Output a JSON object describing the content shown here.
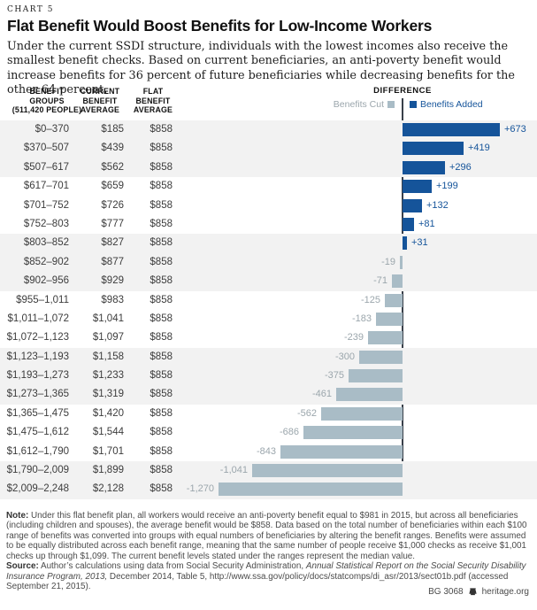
{
  "chart_label": "CHART 5",
  "title": "Flat Benefit Would Boost Benefits for Low-Income Workers",
  "subtitle": "Under the current SSDI structure, individuals with the lowest incomes also receive the smallest benefit checks. Based on current beneficiaries, an anti-poverty benefit would increase benefits for 36 percent of future beneficiaries while decreasing benefits for the other 64 percent.",
  "table": {
    "headers": {
      "group_lines": [
        "BENEFIT",
        "GROUPS",
        "(511,420 PEOPLE)"
      ],
      "current_lines": [
        "CURRENT",
        "BENEFIT",
        "AVERAGE"
      ],
      "flat_lines": [
        "FLAT",
        "BENEFIT",
        "AVERAGE"
      ],
      "difference": "DIFFERENCE"
    }
  },
  "legend": {
    "cut_label": "Benefits Cut",
    "added_label": "Benefits Added"
  },
  "colors": {
    "benefits_added": "#15549A",
    "benefits_cut": "#A9BCC6",
    "row_shade": "#F2F2F2",
    "axis": "#39404A",
    "neg_label": "#9BA6AC"
  },
  "rows": [
    {
      "group": "$0–370",
      "current": "$185",
      "flat": "$858",
      "diff": 673,
      "diff_label": "+673"
    },
    {
      "group": "$370–507",
      "current": "$439",
      "flat": "$858",
      "diff": 419,
      "diff_label": "+419"
    },
    {
      "group": "$507–617",
      "current": "$562",
      "flat": "$858",
      "diff": 296,
      "diff_label": "+296"
    },
    {
      "group": "$617–701",
      "current": "$659",
      "flat": "$858",
      "diff": 199,
      "diff_label": "+199"
    },
    {
      "group": "$701–752",
      "current": "$726",
      "flat": "$858",
      "diff": 132,
      "diff_label": "+132"
    },
    {
      "group": "$752–803",
      "current": "$777",
      "flat": "$858",
      "diff": 81,
      "diff_label": "+81"
    },
    {
      "group": "$803–852",
      "current": "$827",
      "flat": "$858",
      "diff": 31,
      "diff_label": "+31"
    },
    {
      "group": "$852–902",
      "current": "$877",
      "flat": "$858",
      "diff": -19,
      "diff_label": "-19"
    },
    {
      "group": "$902–956",
      "current": "$929",
      "flat": "$858",
      "diff": -71,
      "diff_label": "-71"
    },
    {
      "group": "$955–1,011",
      "current": "$983",
      "flat": "$858",
      "diff": -125,
      "diff_label": "-125"
    },
    {
      "group": "$1,011–1,072",
      "current": "$1,041",
      "flat": "$858",
      "diff": -183,
      "diff_label": "-183"
    },
    {
      "group": "$1,072–1,123",
      "current": "$1,097",
      "flat": "$858",
      "diff": -239,
      "diff_label": "-239"
    },
    {
      "group": "$1,123–1,193",
      "current": "$1,158",
      "flat": "$858",
      "diff": -300,
      "diff_label": "-300"
    },
    {
      "group": "$1,193–1,273",
      "current": "$1,233",
      "flat": "$858",
      "diff": -375,
      "diff_label": "-375"
    },
    {
      "group": "$1,273–1,365",
      "current": "$1,319",
      "flat": "$858",
      "diff": -461,
      "diff_label": "-461"
    },
    {
      "group": "$1,365–1,475",
      "current": "$1,420",
      "flat": "$858",
      "diff": -562,
      "diff_label": "-562"
    },
    {
      "group": "$1,475–1,612",
      "current": "$1,544",
      "flat": "$858",
      "diff": -686,
      "diff_label": "-686"
    },
    {
      "group": "$1,612–1,790",
      "current": "$1,701",
      "flat": "$858",
      "diff": -843,
      "diff_label": "-843"
    },
    {
      "group": "$1,790–2,009",
      "current": "$1,899",
      "flat": "$858",
      "diff": -1041,
      "diff_label": "-1,041"
    },
    {
      "group": "$2,009–2,248",
      "current": "$2,128",
      "flat": "$858",
      "diff": -1270,
      "diff_label": "-1,270"
    }
  ],
  "chart_data": {
    "type": "bar",
    "orientation": "horizontal-diverging",
    "title": "Flat Benefit Would Boost Benefits for Low-Income Workers",
    "categories": [
      "$0–370",
      "$370–507",
      "$507–617",
      "$617–701",
      "$701–752",
      "$752–803",
      "$803–852",
      "$852–902",
      "$902–956",
      "$955–1,011",
      "$1,011–1,072",
      "$1,072–1,123",
      "$1,123–1,193",
      "$1,193–1,273",
      "$1,273–1,365",
      "$1,365–1,475",
      "$1,475–1,612",
      "$1,612–1,790",
      "$1,790–2,009",
      "$2,009–2,248"
    ],
    "series": [
      {
        "name": "Current Benefit Average",
        "values": [
          185,
          439,
          562,
          659,
          726,
          777,
          827,
          877,
          929,
          983,
          1041,
          1097,
          1158,
          1233,
          1319,
          1420,
          1544,
          1701,
          1899,
          2128
        ]
      },
      {
        "name": "Flat Benefit Average",
        "values": [
          858,
          858,
          858,
          858,
          858,
          858,
          858,
          858,
          858,
          858,
          858,
          858,
          858,
          858,
          858,
          858,
          858,
          858,
          858,
          858
        ]
      },
      {
        "name": "Difference",
        "values": [
          673,
          419,
          296,
          199,
          132,
          81,
          31,
          -19,
          -71,
          -125,
          -183,
          -239,
          -300,
          -375,
          -461,
          -562,
          -686,
          -843,
          -1041,
          -1270
        ]
      }
    ],
    "xlabel": "DIFFERENCE",
    "ylabel": "BENEFIT GROUPS (511,420 PEOPLE)",
    "xlim": [
      -1300,
      700
    ],
    "legend_entries": [
      "Benefits Cut",
      "Benefits Added"
    ],
    "legend_position": "top",
    "grid": false
  },
  "note": {
    "label": "Note:",
    "text": " Under this flat benefit plan, all workers would receive an anti-poverty benefit equal to $981 in 2015, but across all beneficiaries (including children and spouses), the average benefit would be $858. Data based on the total number of beneficiaries within each $100 range of benefits was converted into groups with equal numbers of beneficiaries by altering the benefit ranges. Benefits were assumed to be equally distributed across each benefit range, meaning that the same number of people receive $1,000 checks as receive $1,001 checks up through $1,099. The current benefit levels stated under the ranges represent the median value."
  },
  "source": {
    "label": "Source:",
    "pre": " Author’s calculations using data from Social Security Administration, ",
    "italic": "Annual Statistical Report on the Social Security Disability Insurance Program, 2013,",
    "post": " December 2014, Table 5, http://www.ssa.gov/policy/docs/statcomps/di_asr/2013/sect01b.pdf (accessed September 21, 2015)."
  },
  "footer": {
    "report_id": "BG 3068",
    "site": "heritage.org"
  }
}
